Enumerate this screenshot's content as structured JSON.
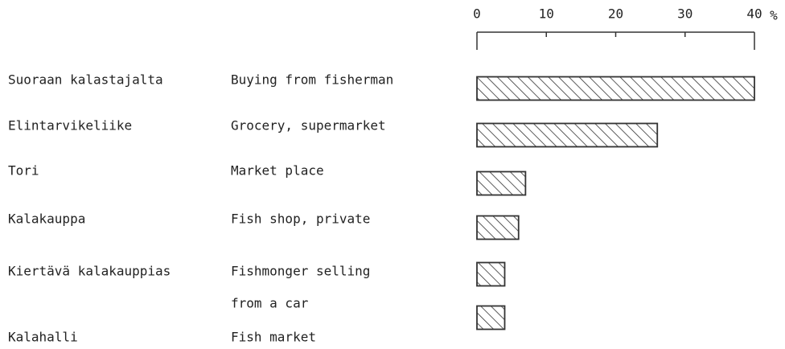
{
  "chart_data": {
    "type": "bar",
    "categories": [
      "Suoraan kalastajalta",
      "Elintarvikeliike",
      "Tori",
      "Kalakauppa",
      "Kiertävä kalakauppias",
      "Kalahalli"
    ],
    "categories_en": [
      [
        "Buying from fisherman"
      ],
      [
        "Grocery, supermarket"
      ],
      [
        "Market place"
      ],
      [
        "Fish shop, private"
      ],
      [
        "Fishmonger selling",
        "from a car"
      ],
      [
        "Fish market"
      ]
    ],
    "values": [
      40,
      26,
      7,
      6,
      4,
      4
    ],
    "xlim": [
      0,
      40
    ],
    "xticks": [
      0,
      10,
      20,
      30,
      40
    ],
    "unit": "%",
    "color": "#333333"
  }
}
